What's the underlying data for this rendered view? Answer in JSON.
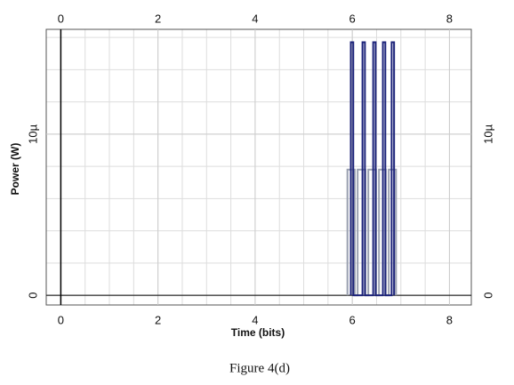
{
  "chart_data": {
    "type": "line",
    "x_label": "Time (bits)",
    "y_label": "Power (W)",
    "caption": "Figure 4(d)",
    "xlim": [
      -0.3,
      8.45
    ],
    "xticks": [
      0,
      2,
      4,
      6,
      8
    ],
    "ylim": [
      -6e-07,
      1.65e-05
    ],
    "yticks": [
      0,
      {
        "value": 1e-05,
        "label": "10µ"
      }
    ],
    "grid": true,
    "series": [
      {
        "color": "#9aa0b0",
        "x": [
          5.9,
          5.9,
          6.05,
          6.05,
          6.11,
          6.11,
          6.27,
          6.27,
          6.33,
          6.33,
          6.49,
          6.49,
          6.55,
          6.55,
          6.69,
          6.69,
          6.75,
          6.75,
          6.9,
          6.9
        ],
        "values": [
          0,
          7.8e-06,
          7.8e-06,
          0,
          0,
          7.8e-06,
          7.8e-06,
          0,
          0,
          7.8e-06,
          7.8e-06,
          0,
          0,
          7.8e-06,
          7.8e-06,
          0,
          0,
          7.8e-06,
          7.8e-06,
          0
        ]
      },
      {
        "color": "#1c237a",
        "x": [
          5.97,
          5.97,
          6.02,
          6.02,
          6.21,
          6.21,
          6.26,
          6.26,
          6.43,
          6.43,
          6.48,
          6.48,
          6.63,
          6.63,
          6.68,
          6.68,
          6.81,
          6.81,
          6.86,
          6.86
        ],
        "values": [
          0,
          1.57e-05,
          1.57e-05,
          0,
          0,
          1.57e-05,
          1.57e-05,
          0,
          0,
          1.57e-05,
          1.57e-05,
          0,
          0,
          1.57e-05,
          1.57e-05,
          0,
          0,
          1.57e-05,
          1.57e-05,
          0
        ]
      }
    ]
  }
}
